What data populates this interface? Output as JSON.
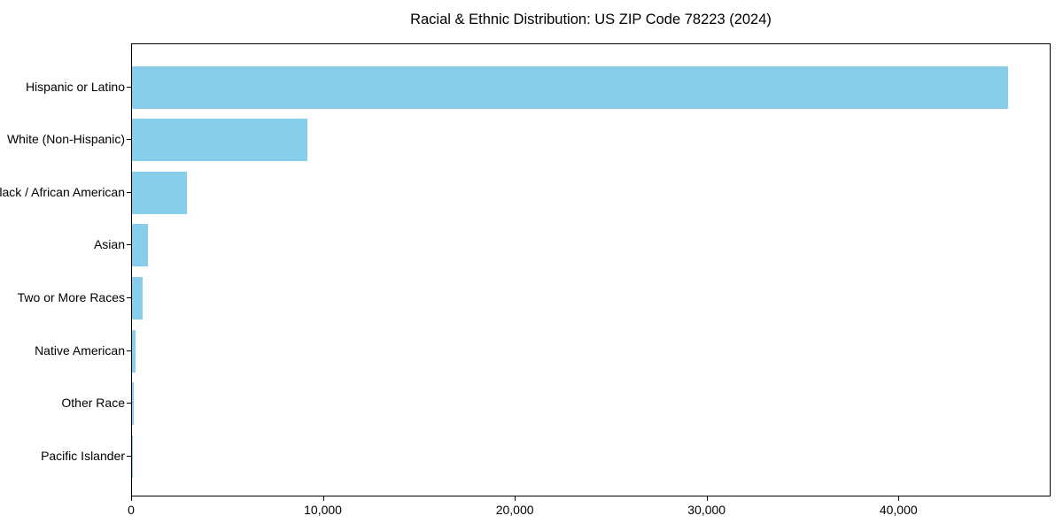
{
  "chart_data": {
    "type": "bar",
    "orientation": "horizontal",
    "title": "Racial & Ethnic Distribution: US ZIP Code 78223 (2024)",
    "categories": [
      "Hispanic or Latino",
      "White (Non-Hispanic)",
      "Black / African American",
      "Asian",
      "Two or More Races",
      "Native American",
      "Other Race",
      "Pacific Islander"
    ],
    "values": [
      45650,
      9160,
      2880,
      820,
      540,
      200,
      80,
      20
    ],
    "xlabel": "",
    "ylabel": "",
    "xlim": [
      0,
      47930
    ],
    "xticks": [
      0,
      10000,
      20000,
      30000,
      40000
    ],
    "xtick_labels": [
      "0",
      "10,000",
      "20,000",
      "30,000",
      "40,000"
    ],
    "legend": "none",
    "grid": false,
    "bar_color": "#87CEEB",
    "frame_color": "#000000",
    "text_color": "#000000",
    "background_color": "#FFFFFF"
  }
}
